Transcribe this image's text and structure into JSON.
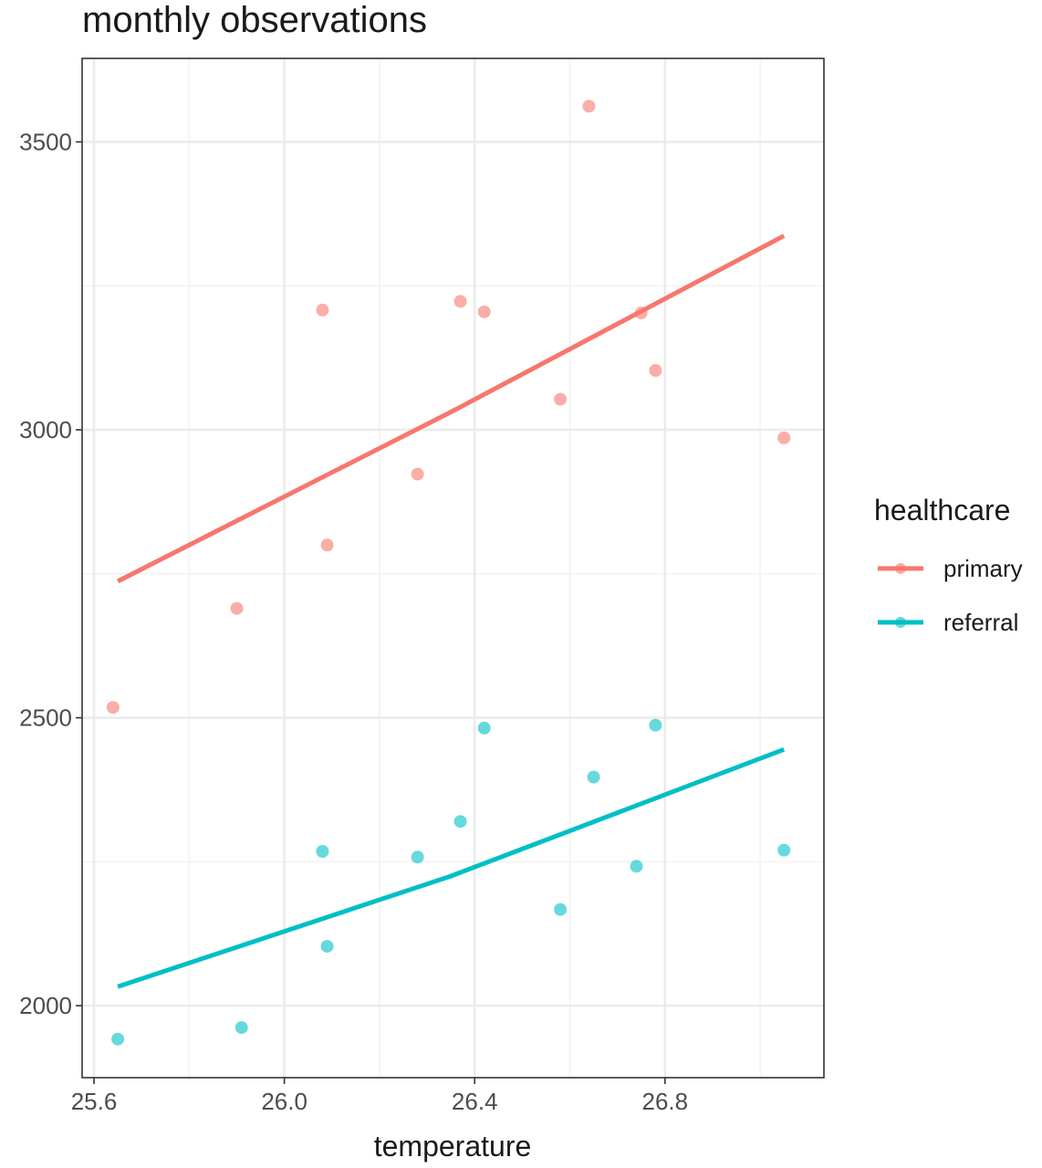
{
  "chart_data": {
    "type": "scatter",
    "title": "monthly observations",
    "xlabel": "temperature",
    "ylabel": "",
    "xlim": [
      25.575,
      27.134
    ],
    "ylim": [
      1875,
      3645
    ],
    "x_ticks": [
      25.6,
      26.0,
      26.4,
      26.8
    ],
    "x_tick_labels": [
      "25.6",
      "26.0",
      "26.4",
      "26.8"
    ],
    "y_ticks": [
      2000,
      2500,
      3000,
      3500
    ],
    "y_tick_labels": [
      "2000",
      "2500",
      "3000",
      "3500"
    ],
    "grid": true,
    "legend": {
      "title": "healthcare",
      "placement": "right"
    },
    "series": [
      {
        "name": "primary",
        "color": "#F8766D",
        "points": [
          {
            "x": 25.64,
            "y": 2518
          },
          {
            "x": 25.9,
            "y": 2690
          },
          {
            "x": 26.08,
            "y": 3208
          },
          {
            "x": 26.09,
            "y": 2800
          },
          {
            "x": 26.28,
            "y": 2923
          },
          {
            "x": 26.37,
            "y": 3223
          },
          {
            "x": 26.42,
            "y": 3205
          },
          {
            "x": 26.58,
            "y": 3053
          },
          {
            "x": 26.64,
            "y": 3562
          },
          {
            "x": 26.75,
            "y": 3203
          },
          {
            "x": 26.78,
            "y": 3103
          },
          {
            "x": 27.05,
            "y": 2986
          }
        ],
        "trend": [
          {
            "x": 25.65,
            "y": 2737
          },
          {
            "x": 26.35,
            "y": 3031
          },
          {
            "x": 27.05,
            "y": 3337
          }
        ]
      },
      {
        "name": "referral",
        "color": "#00BFC4",
        "points": [
          {
            "x": 25.65,
            "y": 1942
          },
          {
            "x": 25.91,
            "y": 1962
          },
          {
            "x": 26.08,
            "y": 2268
          },
          {
            "x": 26.09,
            "y": 2103
          },
          {
            "x": 26.28,
            "y": 2258
          },
          {
            "x": 26.37,
            "y": 2320
          },
          {
            "x": 26.42,
            "y": 2482
          },
          {
            "x": 26.58,
            "y": 2167
          },
          {
            "x": 26.65,
            "y": 2397
          },
          {
            "x": 26.74,
            "y": 2242
          },
          {
            "x": 26.78,
            "y": 2487
          },
          {
            "x": 27.05,
            "y": 2270
          }
        ],
        "trend": [
          {
            "x": 25.65,
            "y": 2033
          },
          {
            "x": 26.35,
            "y": 2225
          },
          {
            "x": 27.05,
            "y": 2445
          }
        ]
      }
    ]
  }
}
